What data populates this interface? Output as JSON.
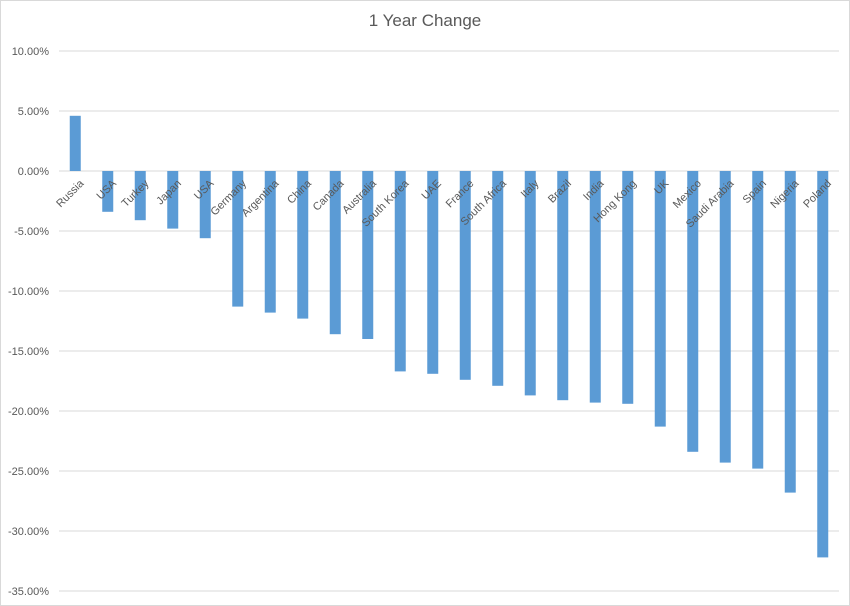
{
  "chart_data": {
    "type": "bar",
    "title": "1 Year Change",
    "xlabel": "",
    "ylabel": "",
    "ylim": [
      -35,
      10
    ],
    "y_ticks": [
      10,
      5,
      0,
      -5,
      -10,
      -15,
      -20,
      -25,
      -30,
      -35
    ],
    "y_tick_labels": [
      "10.00%",
      "5.00%",
      "0.00%",
      "-5.00%",
      "-10.00%",
      "-15.00%",
      "-20.00%",
      "-25.00%",
      "-30.00%",
      "-35.00%"
    ],
    "grid": true,
    "legend": "none",
    "bar_color": "#5b9bd5",
    "categories": [
      "Russia",
      "USA",
      "Turkey",
      "Japan",
      "USA",
      "Germany",
      "Argentina",
      "China",
      "Canada",
      "Australia",
      "South Korea",
      "UAE",
      "France",
      "South Africa",
      "Italy",
      "Brazil",
      "India",
      "Hong Kong",
      "UK",
      "Mexico",
      "Saudi Arabia",
      "Spain",
      "Nigeria",
      "Poland"
    ],
    "values": [
      4.6,
      -3.4,
      -4.1,
      -4.8,
      -5.6,
      -11.3,
      -11.8,
      -12.3,
      -13.6,
      -14.0,
      -16.7,
      -16.9,
      -17.4,
      -17.9,
      -18.7,
      -19.1,
      -19.3,
      -19.4,
      -21.3,
      -23.4,
      -24.3,
      -24.8,
      -26.8,
      -32.2
    ]
  }
}
